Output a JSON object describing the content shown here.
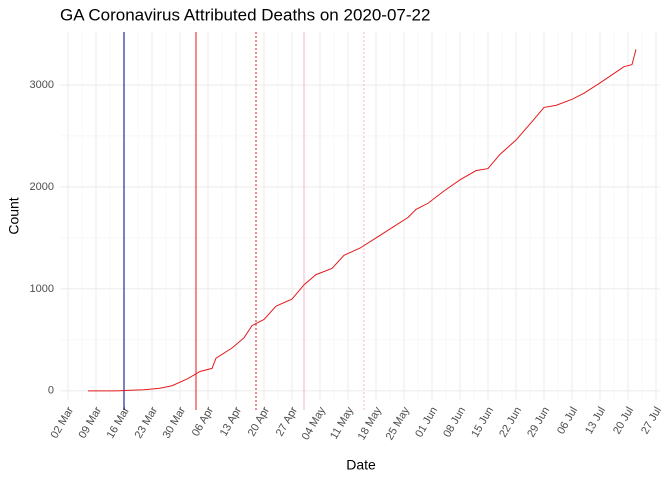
{
  "chart_data": {
    "type": "line",
    "title": "GA Coronavirus Attributed Deaths on 2020-07-22",
    "x_label": "Date",
    "y_label": "Count",
    "x": [
      "07 Mar",
      "14 Mar",
      "21 Mar",
      "25 Mar",
      "28 Mar",
      "01 Apr",
      "04 Apr",
      "07 Apr",
      "08 Apr",
      "12 Apr",
      "15 Apr",
      "17 Apr",
      "20 Apr",
      "23 Apr",
      "27 Apr",
      "30 Apr",
      "03 May",
      "07 May",
      "10 May",
      "14 May",
      "18 May",
      "22 May",
      "26 May",
      "28 May",
      "31 May",
      "04 Jun",
      "08 Jun",
      "12 Jun",
      "15 Jun",
      "18 Jun",
      "22 Jun",
      "26 Jun",
      "29 Jun",
      "02 Jul",
      "06 Jul",
      "09 Jul",
      "13 Jul",
      "16 Jul",
      "19 Jul",
      "21 Jul",
      "22 Jul"
    ],
    "series": [
      {
        "color": "#e31a1c",
        "values": [
          0,
          0,
          10,
          25,
          50,
          120,
          190,
          220,
          320,
          420,
          520,
          640,
          700,
          830,
          900,
          1040,
          1140,
          1200,
          1330,
          1400,
          1500,
          1600,
          1700,
          1780,
          1840,
          1960,
          2070,
          2160,
          2180,
          2320,
          2460,
          2640,
          2780,
          2800,
          2860,
          2920,
          3020,
          3100,
          3180,
          3200,
          3350
        ]
      }
    ],
    "xlim": [
      "29 Feb",
      "28 Jul"
    ],
    "xticks": [
      "02 Mar",
      "09 Mar",
      "16 Mar",
      "23 Mar",
      "30 Mar",
      "06 Apr",
      "13 Apr",
      "20 Apr",
      "27 Apr",
      "04 May",
      "11 May",
      "18 May",
      "25 May",
      "01 Jun",
      "08 Jun",
      "15 Jun",
      "22 Jun",
      "29 Jun",
      "06 Jul",
      "13 Jul",
      "20 Jul",
      "27 Jul"
    ],
    "ylim": [
      -90,
      3520
    ],
    "yticks": [
      0,
      1000,
      2000,
      3000
    ],
    "grid": true,
    "vlines": [
      {
        "x": "16 Mar",
        "color": "#000080",
        "dash": "solid"
      },
      {
        "x": "03 Apr",
        "color": "#e31a1c",
        "dash": "solid"
      },
      {
        "x": "18 Apr",
        "color": "#e31a1c",
        "dash": "dotted"
      },
      {
        "x": "30 Apr",
        "color": "#f4b6c8",
        "dash": "solid"
      },
      {
        "x": "15 May",
        "color": "#f4b6c8",
        "dash": "dotted"
      }
    ]
  }
}
